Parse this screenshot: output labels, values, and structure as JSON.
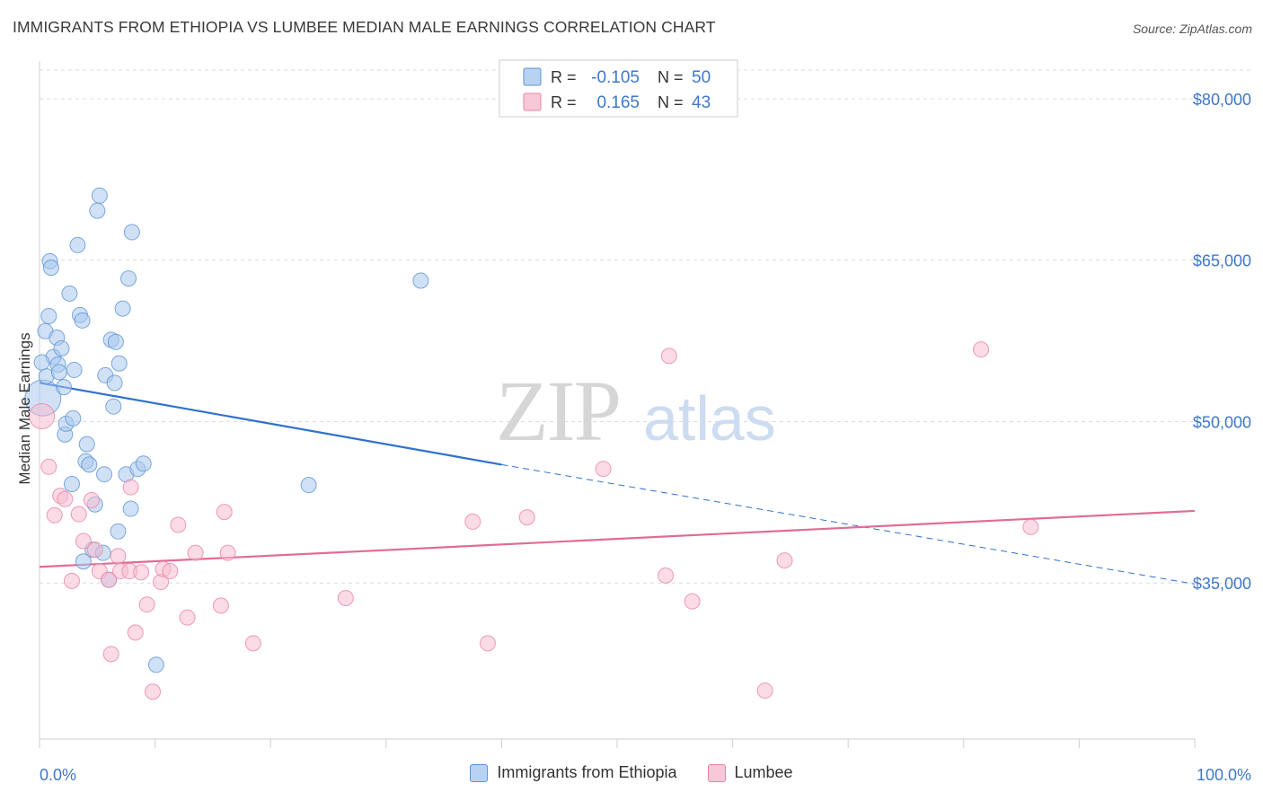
{
  "title": "IMMIGRANTS FROM ETHIOPIA VS LUMBEE MEDIAN MALE EARNINGS CORRELATION CHART",
  "source": "Source: ZipAtlas.com",
  "watermark": {
    "zip": "ZIP",
    "atlas": "atlas"
  },
  "legend_box": {
    "rows": [
      {
        "r_label": "R =",
        "r_value": "-0.105",
        "n_label": "N =",
        "n_value": "50"
      },
      {
        "r_label": "R =",
        "r_value": "0.165",
        "n_label": "N =",
        "n_value": "43"
      }
    ]
  },
  "colors": {
    "blue_fill": "#aac8ee",
    "blue_stroke": "#5f93d4",
    "blue_line": "#2f72cc",
    "pink_fill": "#f7bdd0",
    "pink_stroke": "#e884a6",
    "pink_line": "#e06c95",
    "axis_label": "#3f78c9",
    "grid": "#dcdcdc"
  },
  "chart_data": {
    "type": "scatter",
    "title": "IMMIGRANTS FROM ETHIOPIA VS LUMBEE MEDIAN MALE EARNINGS CORRELATION CHART",
    "xlabel": "",
    "ylabel": "Median Male Earnings",
    "xlim": [
      0,
      100
    ],
    "ylim": [
      20500,
      83500
    ],
    "x_tick_labels": [
      "0.0%",
      "100.0%"
    ],
    "y_ticks": [
      35000,
      50000,
      65000,
      80000
    ],
    "y_tick_labels": [
      "$35,000",
      "$50,000",
      "$65,000",
      "$80,000"
    ],
    "grid": true,
    "legend": "top-center and bottom",
    "series": [
      {
        "name": "Immigrants from Ethiopia",
        "color": "#5f93d4",
        "r": -0.105,
        "n": 50,
        "trend": {
          "x0": 0,
          "y0": 53600,
          "x1": 40,
          "y1": 46000,
          "x_dashed_end": 100,
          "y_dashed_end": 34900
        },
        "points": [
          [
            0.3,
            52200
          ],
          [
            0.5,
            58400
          ],
          [
            0.6,
            54200
          ],
          [
            0.8,
            59800
          ],
          [
            0.9,
            64900
          ],
          [
            1.0,
            64300
          ],
          [
            1.2,
            56000
          ],
          [
            1.5,
            57800
          ],
          [
            1.6,
            55300
          ],
          [
            1.7,
            54600
          ],
          [
            1.9,
            56800
          ],
          [
            2.1,
            53200
          ],
          [
            2.2,
            48800
          ],
          [
            2.3,
            49800
          ],
          [
            2.6,
            61900
          ],
          [
            2.8,
            44200
          ],
          [
            2.9,
            50300
          ],
          [
            3.0,
            54800
          ],
          [
            3.3,
            66400
          ],
          [
            3.5,
            59900
          ],
          [
            3.7,
            59400
          ],
          [
            3.8,
            37000
          ],
          [
            4.0,
            46300
          ],
          [
            4.1,
            47900
          ],
          [
            4.3,
            46000
          ],
          [
            4.6,
            38100
          ],
          [
            4.8,
            42300
          ],
          [
            5.0,
            69600
          ],
          [
            5.2,
            71000
          ],
          [
            5.5,
            37800
          ],
          [
            5.6,
            45100
          ],
          [
            5.7,
            54300
          ],
          [
            6.0,
            35300
          ],
          [
            6.2,
            57600
          ],
          [
            6.4,
            51400
          ],
          [
            6.5,
            53600
          ],
          [
            6.6,
            57400
          ],
          [
            6.8,
            39800
          ],
          [
            6.9,
            55400
          ],
          [
            7.2,
            60500
          ],
          [
            7.5,
            45100
          ],
          [
            7.7,
            63300
          ],
          [
            7.9,
            41900
          ],
          [
            8.0,
            67600
          ],
          [
            8.5,
            45600
          ],
          [
            9.0,
            46100
          ],
          [
            10.1,
            27400
          ],
          [
            23.3,
            44100
          ],
          [
            33.0,
            63100
          ],
          [
            0.2,
            55500
          ]
        ]
      },
      {
        "name": "Lumbee",
        "color": "#e884a6",
        "r": 0.165,
        "n": 43,
        "trend": {
          "x0": 0,
          "y0": 36500,
          "x1": 100,
          "y1": 41700
        },
        "points": [
          [
            0.2,
            50500
          ],
          [
            0.8,
            45800
          ],
          [
            1.3,
            41300
          ],
          [
            1.8,
            43100
          ],
          [
            2.2,
            42800
          ],
          [
            2.8,
            35200
          ],
          [
            3.4,
            41400
          ],
          [
            3.8,
            38900
          ],
          [
            4.5,
            42700
          ],
          [
            4.8,
            38100
          ],
          [
            5.2,
            36100
          ],
          [
            6.0,
            35300
          ],
          [
            6.2,
            28400
          ],
          [
            6.8,
            37500
          ],
          [
            7.0,
            36100
          ],
          [
            7.8,
            36100
          ],
          [
            7.9,
            43900
          ],
          [
            8.3,
            30400
          ],
          [
            8.8,
            36000
          ],
          [
            9.3,
            33000
          ],
          [
            9.8,
            24900
          ],
          [
            10.5,
            35100
          ],
          [
            10.7,
            36300
          ],
          [
            11.3,
            36100
          ],
          [
            12.0,
            40400
          ],
          [
            12.8,
            31800
          ],
          [
            13.5,
            37800
          ],
          [
            15.7,
            32900
          ],
          [
            16.0,
            41600
          ],
          [
            16.3,
            37800
          ],
          [
            18.5,
            29400
          ],
          [
            26.5,
            33600
          ],
          [
            37.5,
            40700
          ],
          [
            38.8,
            29400
          ],
          [
            42.2,
            41100
          ],
          [
            48.8,
            45600
          ],
          [
            54.2,
            35700
          ],
          [
            54.5,
            56100
          ],
          [
            56.5,
            33300
          ],
          [
            62.8,
            25000
          ],
          [
            64.5,
            37100
          ],
          [
            81.5,
            56700
          ],
          [
            85.8,
            40200
          ]
        ]
      }
    ]
  },
  "bottom_legend": {
    "items": [
      {
        "label": "Immigrants from Ethiopia"
      },
      {
        "label": "Lumbee"
      }
    ]
  }
}
